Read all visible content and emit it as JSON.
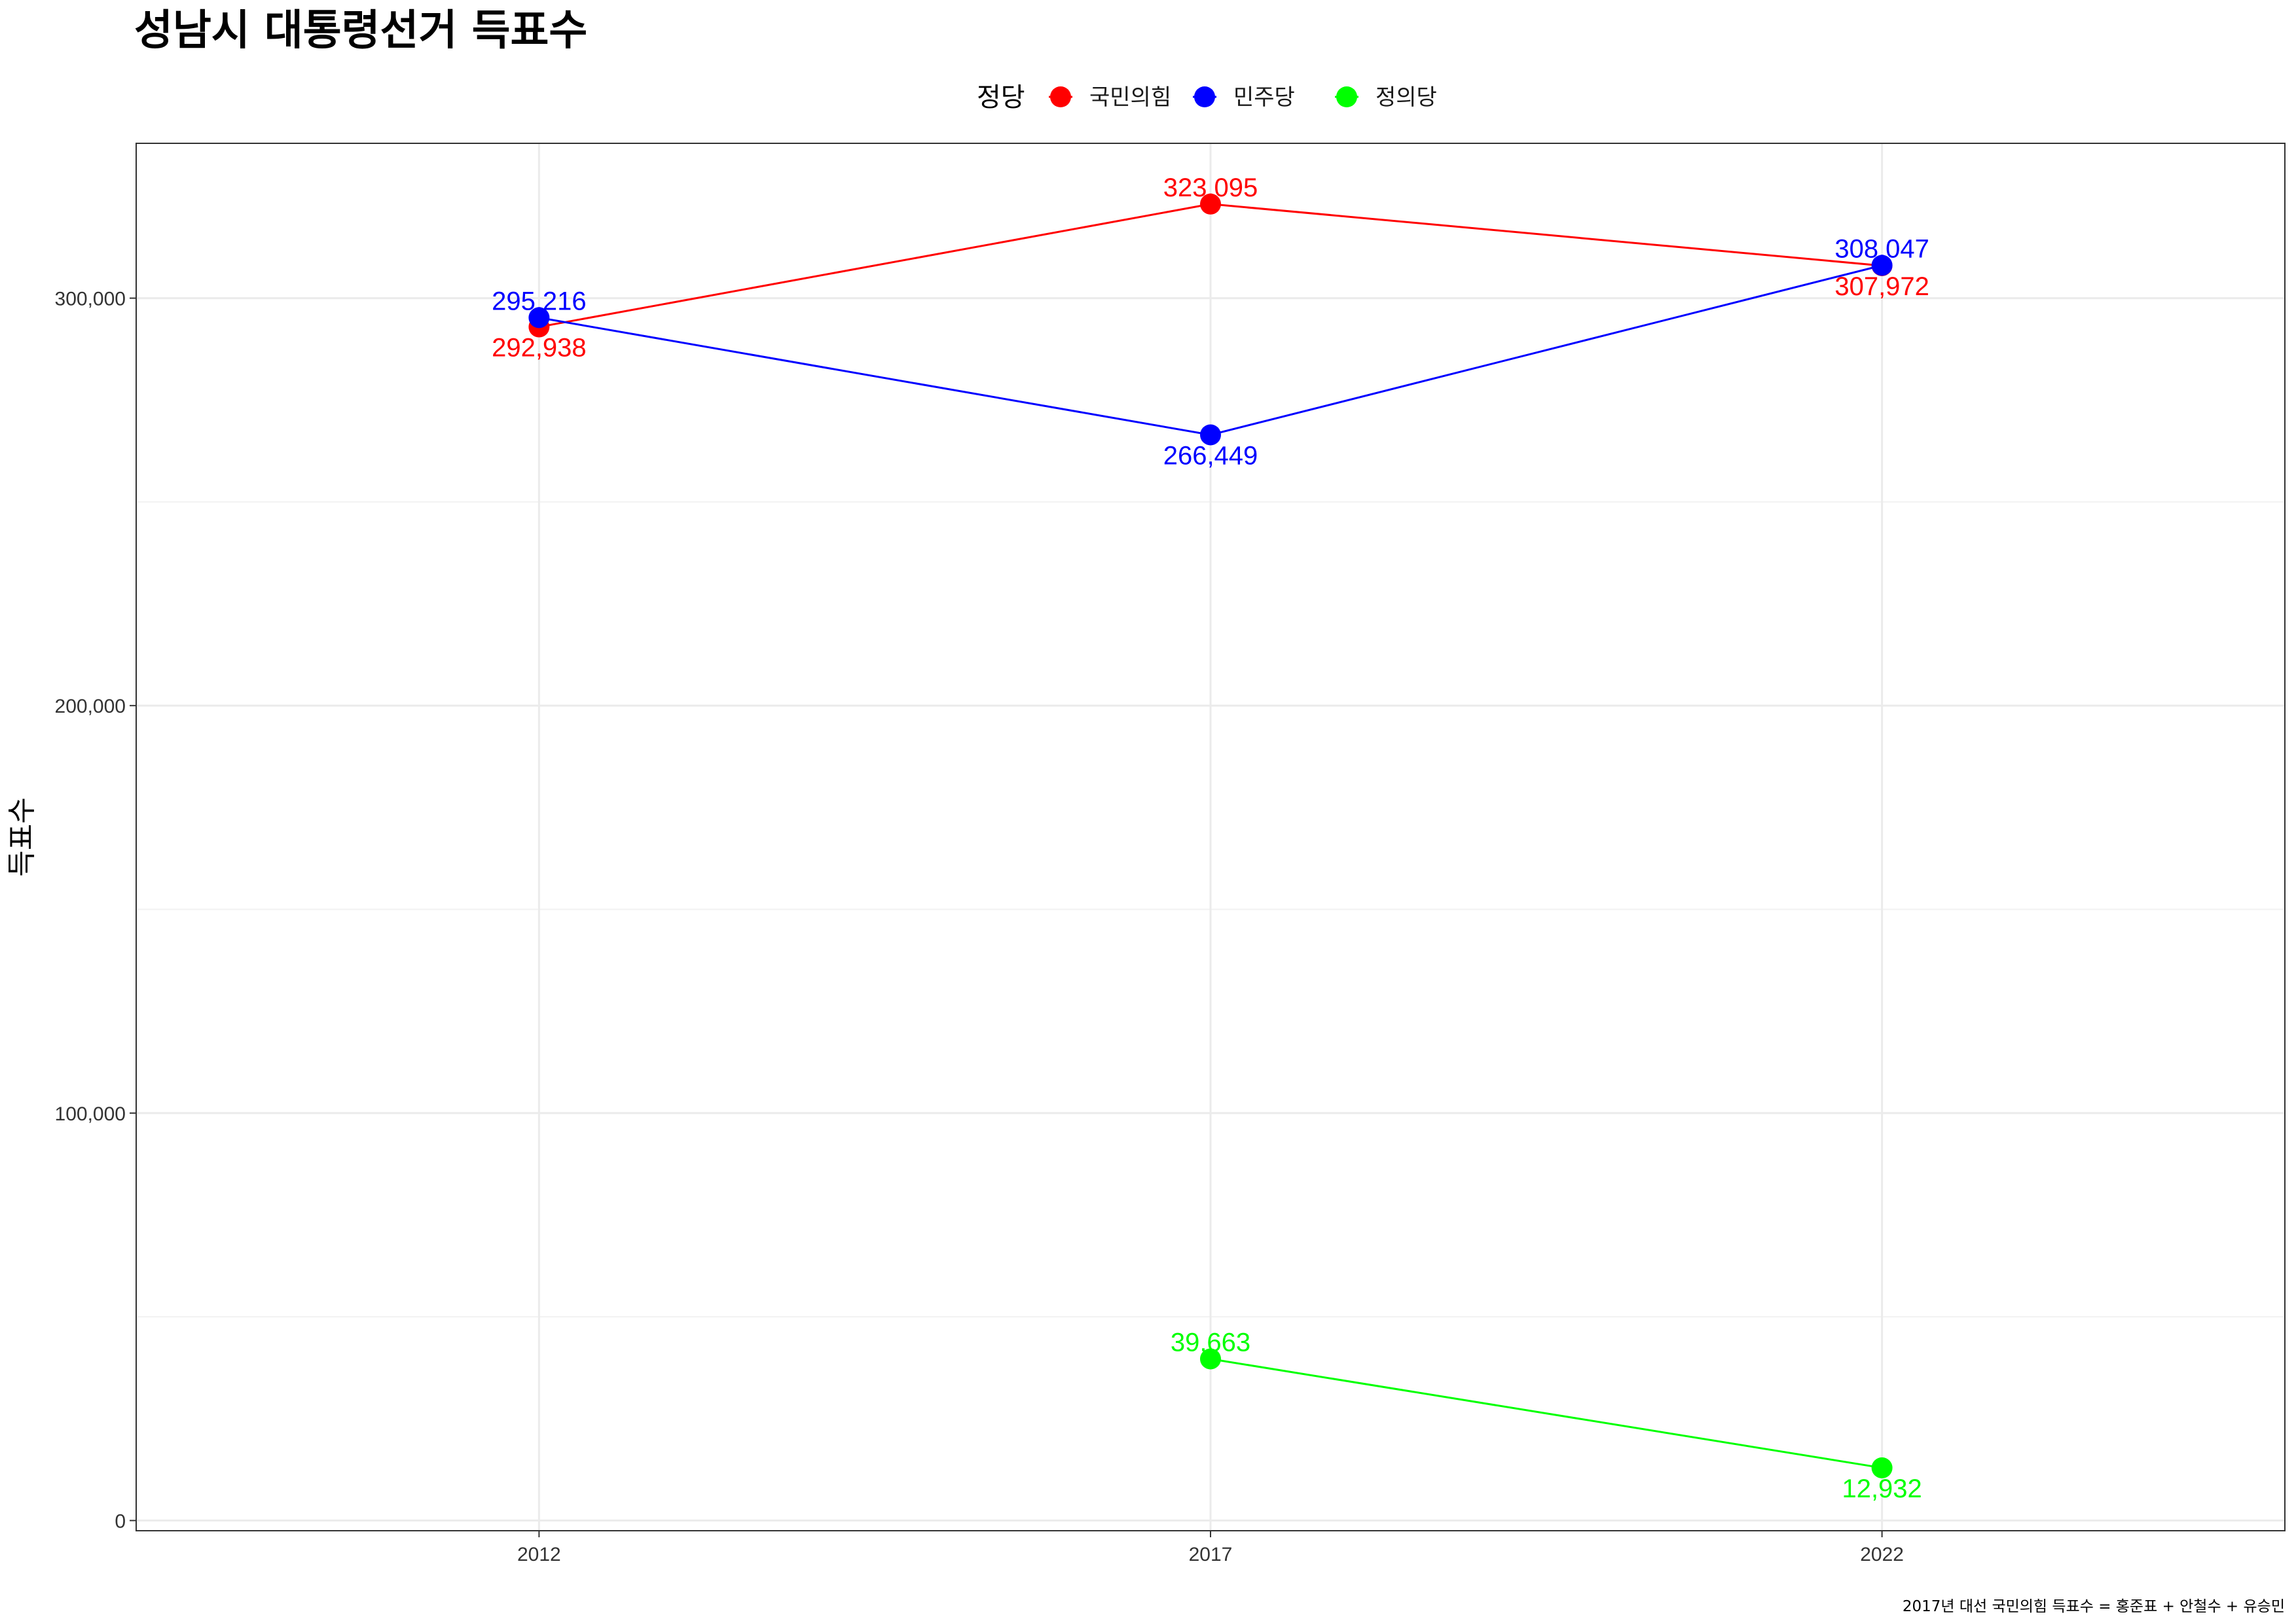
{
  "chart_data": {
    "type": "line",
    "title": "성남시 대통령선거 득표수",
    "xlabel": "",
    "ylabel": "득표수",
    "caption": "2017년 대선 국민의힘 득표수 = 홍준표 + 안철수 + 유승민",
    "legend": {
      "title": "정당",
      "position": "top"
    },
    "categories": [
      "2012",
      "2017",
      "2022"
    ],
    "x": [
      2012,
      2017,
      2022
    ],
    "xlim": [
      2009,
      2025
    ],
    "ylim": [
      -2500,
      338000
    ],
    "yticks": [
      0,
      100000,
      200000,
      300000
    ],
    "ytick_labels": [
      "0",
      "100,000",
      "200,000",
      "300,000"
    ],
    "grid": true,
    "series": [
      {
        "name": "국민의힘",
        "color": "#ff0000",
        "points": [
          {
            "x": 2012,
            "y": 292938,
            "label": "292,938",
            "label_pos": "below"
          },
          {
            "x": 2017,
            "y": 323095,
            "label": "323,095",
            "label_pos": "above"
          },
          {
            "x": 2022,
            "y": 307972,
            "label": "307,972",
            "label_pos": "below"
          }
        ]
      },
      {
        "name": "민주당",
        "color": "#0000ff",
        "points": [
          {
            "x": 2012,
            "y": 295216,
            "label": "295,216",
            "label_pos": "above"
          },
          {
            "x": 2017,
            "y": 266449,
            "label": "266,449",
            "label_pos": "below"
          },
          {
            "x": 2022,
            "y": 308047,
            "label": "308,047",
            "label_pos": "above"
          }
        ]
      },
      {
        "name": "정의당",
        "color": "#00ff00",
        "points": [
          {
            "x": 2017,
            "y": 39663,
            "label": "39,663",
            "label_pos": "above"
          },
          {
            "x": 2022,
            "y": 12932,
            "label": "12,932",
            "label_pos": "below"
          }
        ]
      }
    ]
  }
}
